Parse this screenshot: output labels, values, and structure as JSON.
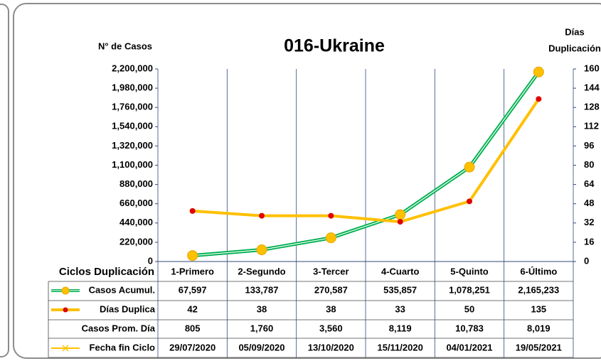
{
  "chart_data": {
    "type": "line",
    "title": "016-Ukraine",
    "y_label": "N° de Casos",
    "y2_label": [
      "Días",
      "Duplicación"
    ],
    "table_header": "Ciclos Duplicación",
    "categories": [
      "1-Primero",
      "2-Segundo",
      "3-Tercer",
      "4-Cuarto",
      "5-Quinto",
      "6-Último"
    ],
    "ylim": [
      0,
      2200000
    ],
    "yticks": [
      0,
      {
        "value": 220000,
        "label": "220,000"
      },
      {
        "value": 440000,
        "label": "440,000"
      },
      {
        "value": 660000,
        "label": "660,000"
      },
      {
        "value": 880000,
        "label": "880,000"
      },
      {
        "value": 1100000,
        "label": "1,100,000"
      },
      {
        "value": 1320000,
        "label": "1,320,000"
      },
      {
        "value": 1540000,
        "label": "1,540,000"
      },
      {
        "value": 1760000,
        "label": "1,760,000"
      },
      {
        "value": 1980000,
        "label": "1,980,000"
      },
      {
        "value": 2200000,
        "label": "2,200,000"
      }
    ],
    "y2lim": [
      0,
      160
    ],
    "y2ticks": [
      0,
      16,
      32,
      48,
      64,
      80,
      96,
      112,
      128,
      144,
      160
    ],
    "grid": true,
    "series": [
      {
        "name": "Casos Acumul.",
        "color": "#00b050",
        "marker_color": "#ffc000",
        "values": [
          67597,
          133787,
          270587,
          535857,
          1078251,
          2165233
        ],
        "value_labels": [
          "67,597",
          "133,787",
          "270,587",
          "535,857",
          "1,078,251",
          "2,165,233"
        ]
      },
      {
        "name": "Días Duplica",
        "color": "#ffc000",
        "marker_color": "#e00000",
        "axis": "y2",
        "values": [
          42,
          38,
          38,
          33,
          50,
          135
        ]
      },
      {
        "name": "Casos Prom. Día",
        "values": [
          805,
          1760,
          3560,
          8119,
          10783,
          8019
        ],
        "value_labels": [
          "805",
          "1,760",
          "3,560",
          "8,119",
          "10,783",
          "8,019"
        ]
      },
      {
        "name": "Fecha fin Ciclo",
        "color": "#ffc000",
        "values": [
          "29/07/2020",
          "05/09/2020",
          "13/10/2020",
          "15/11/2020",
          "04/01/2021",
          "19/05/2021"
        ]
      }
    ]
  }
}
